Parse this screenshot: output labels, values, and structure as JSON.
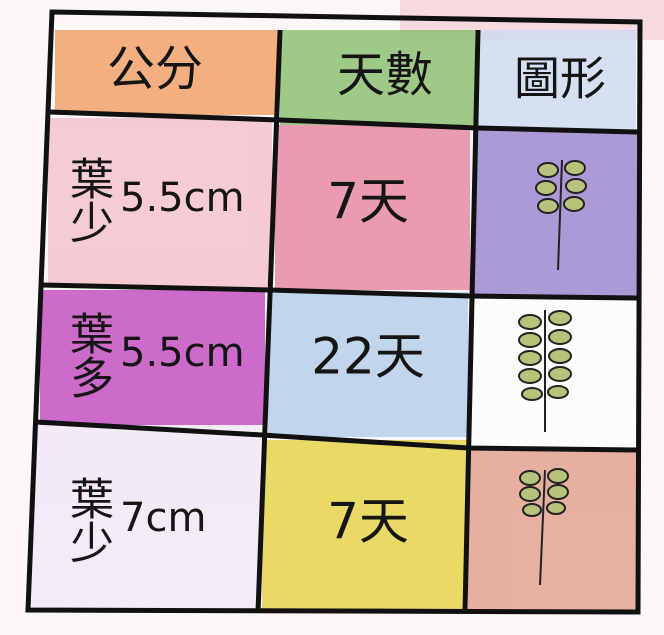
{
  "table": {
    "header": [
      "公分",
      "天數",
      "圖形"
    ],
    "rows": [
      {
        "label": "葉少",
        "length": "5.5cm",
        "days": "7天"
      },
      {
        "label": "葉多",
        "length": "5.5cm",
        "days": "22天"
      },
      {
        "label": "葉少",
        "length": "7cm",
        "days": "7天"
      }
    ]
  }
}
